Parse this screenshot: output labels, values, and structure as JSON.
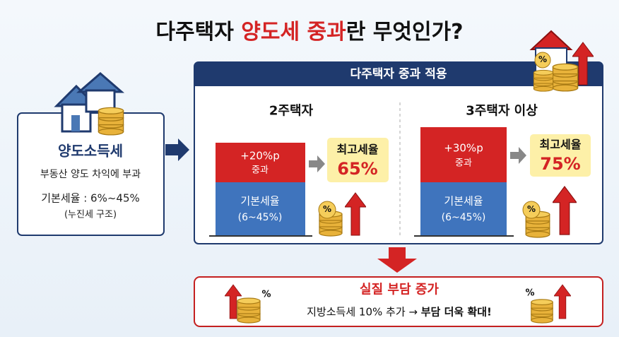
{
  "header": {
    "title_prefix": "다주택자 ",
    "title_highlight": "양도세 중과",
    "title_suffix": "란 무엇인가?"
  },
  "basic_tax": {
    "title": "양도소득세",
    "description": "부동산 양도 차익에 부과",
    "rate": "기본세율 : 6%~45%",
    "note": "(누진세 구조)"
  },
  "surcharge": {
    "title": "다주택자 중과 적용",
    "cases": [
      {
        "label": "2주택자",
        "extra": "+20%p",
        "extra_note": "중과",
        "base": "기본세율",
        "base_range": "(6~45%)",
        "max_label": "최고세율",
        "max_rate": "65%"
      },
      {
        "label": "3주택자 이상",
        "extra": "+30%p",
        "extra_note": "중과",
        "base": "기본세율",
        "base_range": "(6~45%)",
        "max_label": "최고세율",
        "max_rate": "75%"
      }
    ]
  },
  "result": {
    "title": "실질 부담 증가",
    "detail": "지방소득세 10% 추가 → ",
    "detail_emphasis": "부담 더욱 확대!"
  },
  "icon_symbol": "%"
}
